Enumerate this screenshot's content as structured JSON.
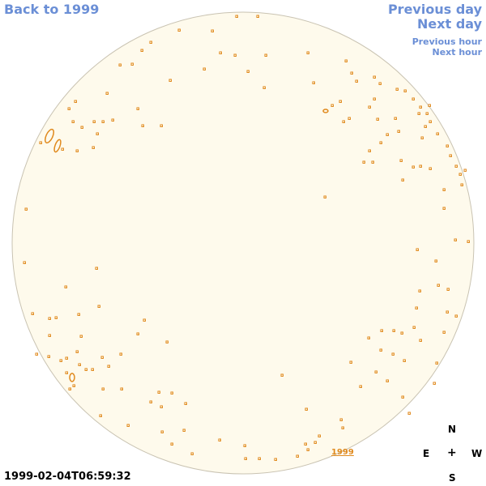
{
  "nav": {
    "back_label": "Back to 1999",
    "prev_day_label": "Previous day",
    "next_day_label": "Next day",
    "prev_hour_label": "Previous hour",
    "next_hour_label": "Next hour"
  },
  "timestamp": "1999-02-04T06:59:32",
  "year_label": "1999",
  "compass": {
    "north": "N",
    "east": "E",
    "center": "+",
    "west": "W",
    "south": "S"
  },
  "colors": {
    "disk_fill": "#fefaec",
    "disk_edge": "#c9c3b2",
    "feature": "#e08a1e",
    "link": "#6b8fd6"
  }
}
